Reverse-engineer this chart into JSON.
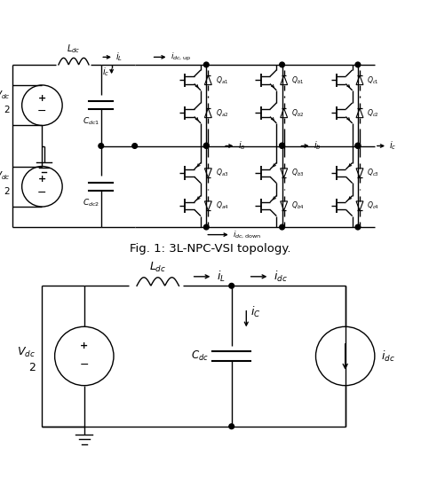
{
  "fig_width": 4.74,
  "fig_height": 5.66,
  "dpi": 100,
  "bg_color": "#ffffff",
  "line_color": "#000000",
  "line_width": 1.0,
  "fig1_caption": "Fig. 1: 3L-NPC-VSI topology."
}
